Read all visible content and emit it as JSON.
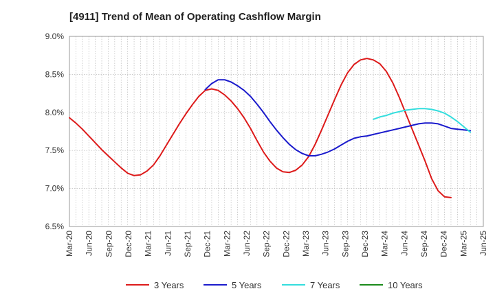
{
  "chart_data": {
    "type": "line",
    "title": "[4911]  Trend of Mean of Operating Cashflow Margin",
    "xlabel": "",
    "ylabel": "",
    "ylim": [
      6.5,
      9.0
    ],
    "yticks": [
      6.5,
      7.0,
      7.5,
      8.0,
      8.5,
      9.0
    ],
    "ytick_labels": [
      "6.5%",
      "7.0%",
      "7.5%",
      "8.0%",
      "8.5%",
      "9.0%"
    ],
    "x_tick_labels": [
      "Mar-20",
      "Jun-20",
      "Sep-20",
      "Dec-20",
      "Mar-21",
      "Jun-21",
      "Sep-21",
      "Dec-21",
      "Mar-22",
      "Jun-22",
      "Sep-22",
      "Dec-22",
      "Mar-23",
      "Jun-23",
      "Sep-23",
      "Dec-23",
      "Mar-24",
      "Jun-24",
      "Sep-24",
      "Dec-24",
      "Mar-25",
      "Jun-25"
    ],
    "x_period_count": 64,
    "grid": true,
    "legend_position": "bottom",
    "series": [
      {
        "name": "3 Years",
        "color": "#dd1a1a",
        "start_index": 0,
        "values": [
          7.93,
          7.86,
          7.78,
          7.69,
          7.6,
          7.51,
          7.43,
          7.35,
          7.27,
          7.2,
          7.17,
          7.18,
          7.23,
          7.31,
          7.43,
          7.57,
          7.71,
          7.85,
          7.98,
          8.1,
          8.21,
          8.29,
          8.31,
          8.29,
          8.23,
          8.15,
          8.05,
          7.93,
          7.79,
          7.63,
          7.48,
          7.36,
          7.27,
          7.22,
          7.21,
          7.24,
          7.31,
          7.42,
          7.58,
          7.77,
          7.97,
          8.17,
          8.36,
          8.52,
          8.63,
          8.69,
          8.71,
          8.69,
          8.64,
          8.54,
          8.39,
          8.2,
          7.99,
          7.78,
          7.57,
          7.36,
          7.13,
          6.97,
          6.89,
          6.88
        ]
      },
      {
        "name": "5 Years",
        "color": "#1a1acc",
        "start_index": 21,
        "values": [
          8.3,
          8.38,
          8.43,
          8.43,
          8.4,
          8.35,
          8.29,
          8.21,
          8.11,
          8.0,
          7.88,
          7.77,
          7.67,
          7.58,
          7.51,
          7.46,
          7.43,
          7.43,
          7.45,
          7.48,
          7.52,
          7.57,
          7.62,
          7.66,
          7.68,
          7.69,
          7.71,
          7.73,
          7.75,
          7.77,
          7.79,
          7.81,
          7.83,
          7.85,
          7.86,
          7.86,
          7.85,
          7.82,
          7.79,
          7.78,
          7.77,
          7.76
        ]
      },
      {
        "name": "7 Years",
        "color": "#33dddd",
        "start_index": 47,
        "values": [
          7.91,
          7.94,
          7.96,
          7.99,
          8.01,
          8.03,
          8.04,
          8.05,
          8.05,
          8.04,
          8.02,
          7.99,
          7.94,
          7.88,
          7.81,
          7.74
        ]
      },
      {
        "name": "10 Years",
        "color": "#1a8a1a",
        "start_index": 0,
        "values": []
      }
    ]
  }
}
